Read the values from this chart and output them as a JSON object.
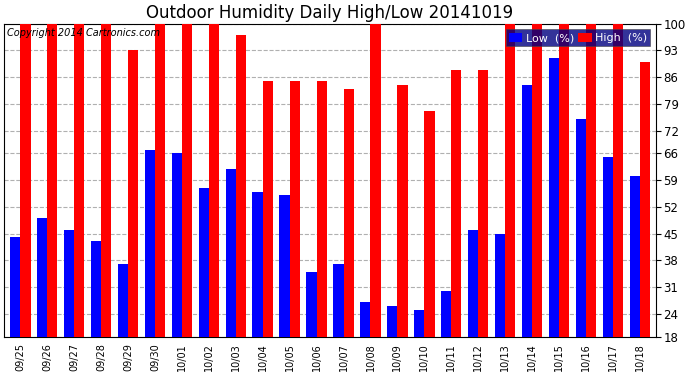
{
  "title": "Outdoor Humidity Daily High/Low 20141019",
  "copyright": "Copyright 2014 Cartronics.com",
  "dates": [
    "09/25",
    "09/26",
    "09/27",
    "09/28",
    "09/29",
    "09/30",
    "10/01",
    "10/02",
    "10/03",
    "10/04",
    "10/05",
    "10/06",
    "10/07",
    "10/08",
    "10/09",
    "10/10",
    "10/11",
    "10/12",
    "10/13",
    "10/14",
    "10/15",
    "10/16",
    "10/17",
    "10/18"
  ],
  "high": [
    100,
    100,
    100,
    100,
    93,
    100,
    100,
    100,
    97,
    85,
    85,
    85,
    83,
    100,
    84,
    77,
    88,
    88,
    100,
    100,
    100,
    100,
    100,
    90
  ],
  "low": [
    44,
    49,
    46,
    43,
    37,
    67,
    66,
    57,
    62,
    56,
    55,
    35,
    37,
    27,
    26,
    25,
    30,
    46,
    45,
    84,
    91,
    75,
    65,
    60
  ],
  "ylim_min": 18,
  "ylim_max": 100,
  "yticks": [
    18,
    24,
    31,
    38,
    45,
    52,
    59,
    66,
    72,
    79,
    86,
    93,
    100
  ],
  "bar_width": 0.38,
  "high_color": "#ff0000",
  "low_color": "#0000ff",
  "bg_color": "#ffffff",
  "grid_color": "#b0b0b0",
  "title_fontsize": 12,
  "copyright_fontsize": 7,
  "legend_label_low": "Low  (%)",
  "legend_label_high": "High  (%)"
}
